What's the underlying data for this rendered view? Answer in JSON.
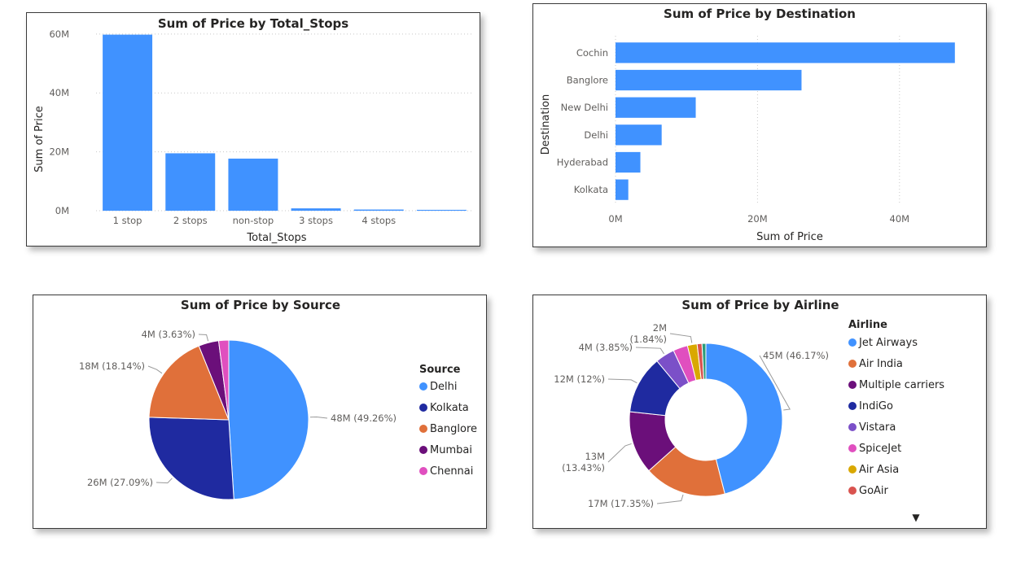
{
  "chart_data": [
    {
      "type": "bar",
      "title": "Sum of Price by Total_Stops",
      "xlabel": "Total_Stops",
      "ylabel": "Sum of Price",
      "categories": [
        "1 stop",
        "2 stops",
        "non-stop",
        "3 stops",
        "4 stops",
        ""
      ],
      "values": [
        59.8,
        19.5,
        17.7,
        0.8,
        0.4,
        0.3
      ],
      "value_unit": "M",
      "yticks": [
        "0M",
        "20M",
        "40M",
        "60M"
      ],
      "ytick_values": [
        0,
        20,
        40,
        60
      ],
      "ylim": [
        0,
        63
      ],
      "grid": true,
      "color": "#4092ff"
    },
    {
      "type": "bar",
      "orientation": "horizontal",
      "title": "Sum of Price by Destination",
      "xlabel": "Sum of Price",
      "ylabel": "Destination",
      "categories": [
        "Cochin",
        "Banglore",
        "New Delhi",
        "Delhi",
        "Hyderabad",
        "Kolkata"
      ],
      "values": [
        47.8,
        26.2,
        11.3,
        6.5,
        3.5,
        1.8
      ],
      "value_unit": "M",
      "xticks": [
        "0M",
        "20M",
        "40M"
      ],
      "xtick_values": [
        0,
        20,
        40
      ],
      "xlim": [
        0,
        50
      ],
      "grid": true,
      "color": "#4092ff"
    },
    {
      "type": "pie",
      "title": "Sum of Price by Source",
      "legend_title": "Source",
      "legend_position": "right",
      "slices": [
        {
          "name": "Delhi",
          "value": 48,
          "percent": 49.26,
          "label": "48M (49.26%)",
          "color": "#4092ff"
        },
        {
          "name": "Kolkata",
          "value": 26,
          "percent": 27.09,
          "label": "26M (27.09%)",
          "color": "#1f2aa0"
        },
        {
          "name": "Banglore",
          "value": 18,
          "percent": 18.14,
          "label": "18M (18.14%)",
          "color": "#e0703a"
        },
        {
          "name": "Mumbai",
          "value": 4,
          "percent": 3.63,
          "label": "4M (3.63%)",
          "color": "#6b0f7a"
        },
        {
          "name": "Chennai",
          "value": 2,
          "percent": 1.88,
          "label": "",
          "color": "#e04fbf"
        }
      ]
    },
    {
      "type": "donut",
      "title": "Sum of Price by Airline",
      "legend_title": "Airline",
      "legend_position": "right",
      "legend_more": "▼",
      "slices": [
        {
          "name": "Jet Airways",
          "value": 45,
          "percent": 46.17,
          "label": "45M (46.17%)",
          "color": "#4092ff"
        },
        {
          "name": "Air India",
          "value": 17,
          "percent": 17.35,
          "label": "17M (17.35%)",
          "color": "#e0703a"
        },
        {
          "name": "Multiple carriers",
          "value": 13,
          "percent": 13.43,
          "label_line1": "13M",
          "label_line2": "(13.43%)",
          "color": "#6b0f7a"
        },
        {
          "name": "IndiGo",
          "value": 12,
          "percent": 12,
          "label": "12M (12%)",
          "color": "#1f2aa0"
        },
        {
          "name": "Vistara",
          "value": 4,
          "percent": 3.85,
          "label": "4M (3.85%)",
          "color": "#7b50c8"
        },
        {
          "name": "SpiceJet",
          "value": 3,
          "percent": 3.3,
          "label": "",
          "color": "#e04fbf"
        },
        {
          "name": "Air Asia",
          "value": 2,
          "percent": 1.84,
          "label_line1": "2M",
          "label_line2": "(1.84%)",
          "color": "#d9a800"
        },
        {
          "name": "GoAir",
          "value": 1,
          "percent": 1.2,
          "label": "",
          "color": "#d9534f"
        },
        {
          "name": "",
          "value": 0.8,
          "percent": 0.81,
          "label": "",
          "color": "#2c9c7a"
        }
      ]
    }
  ]
}
